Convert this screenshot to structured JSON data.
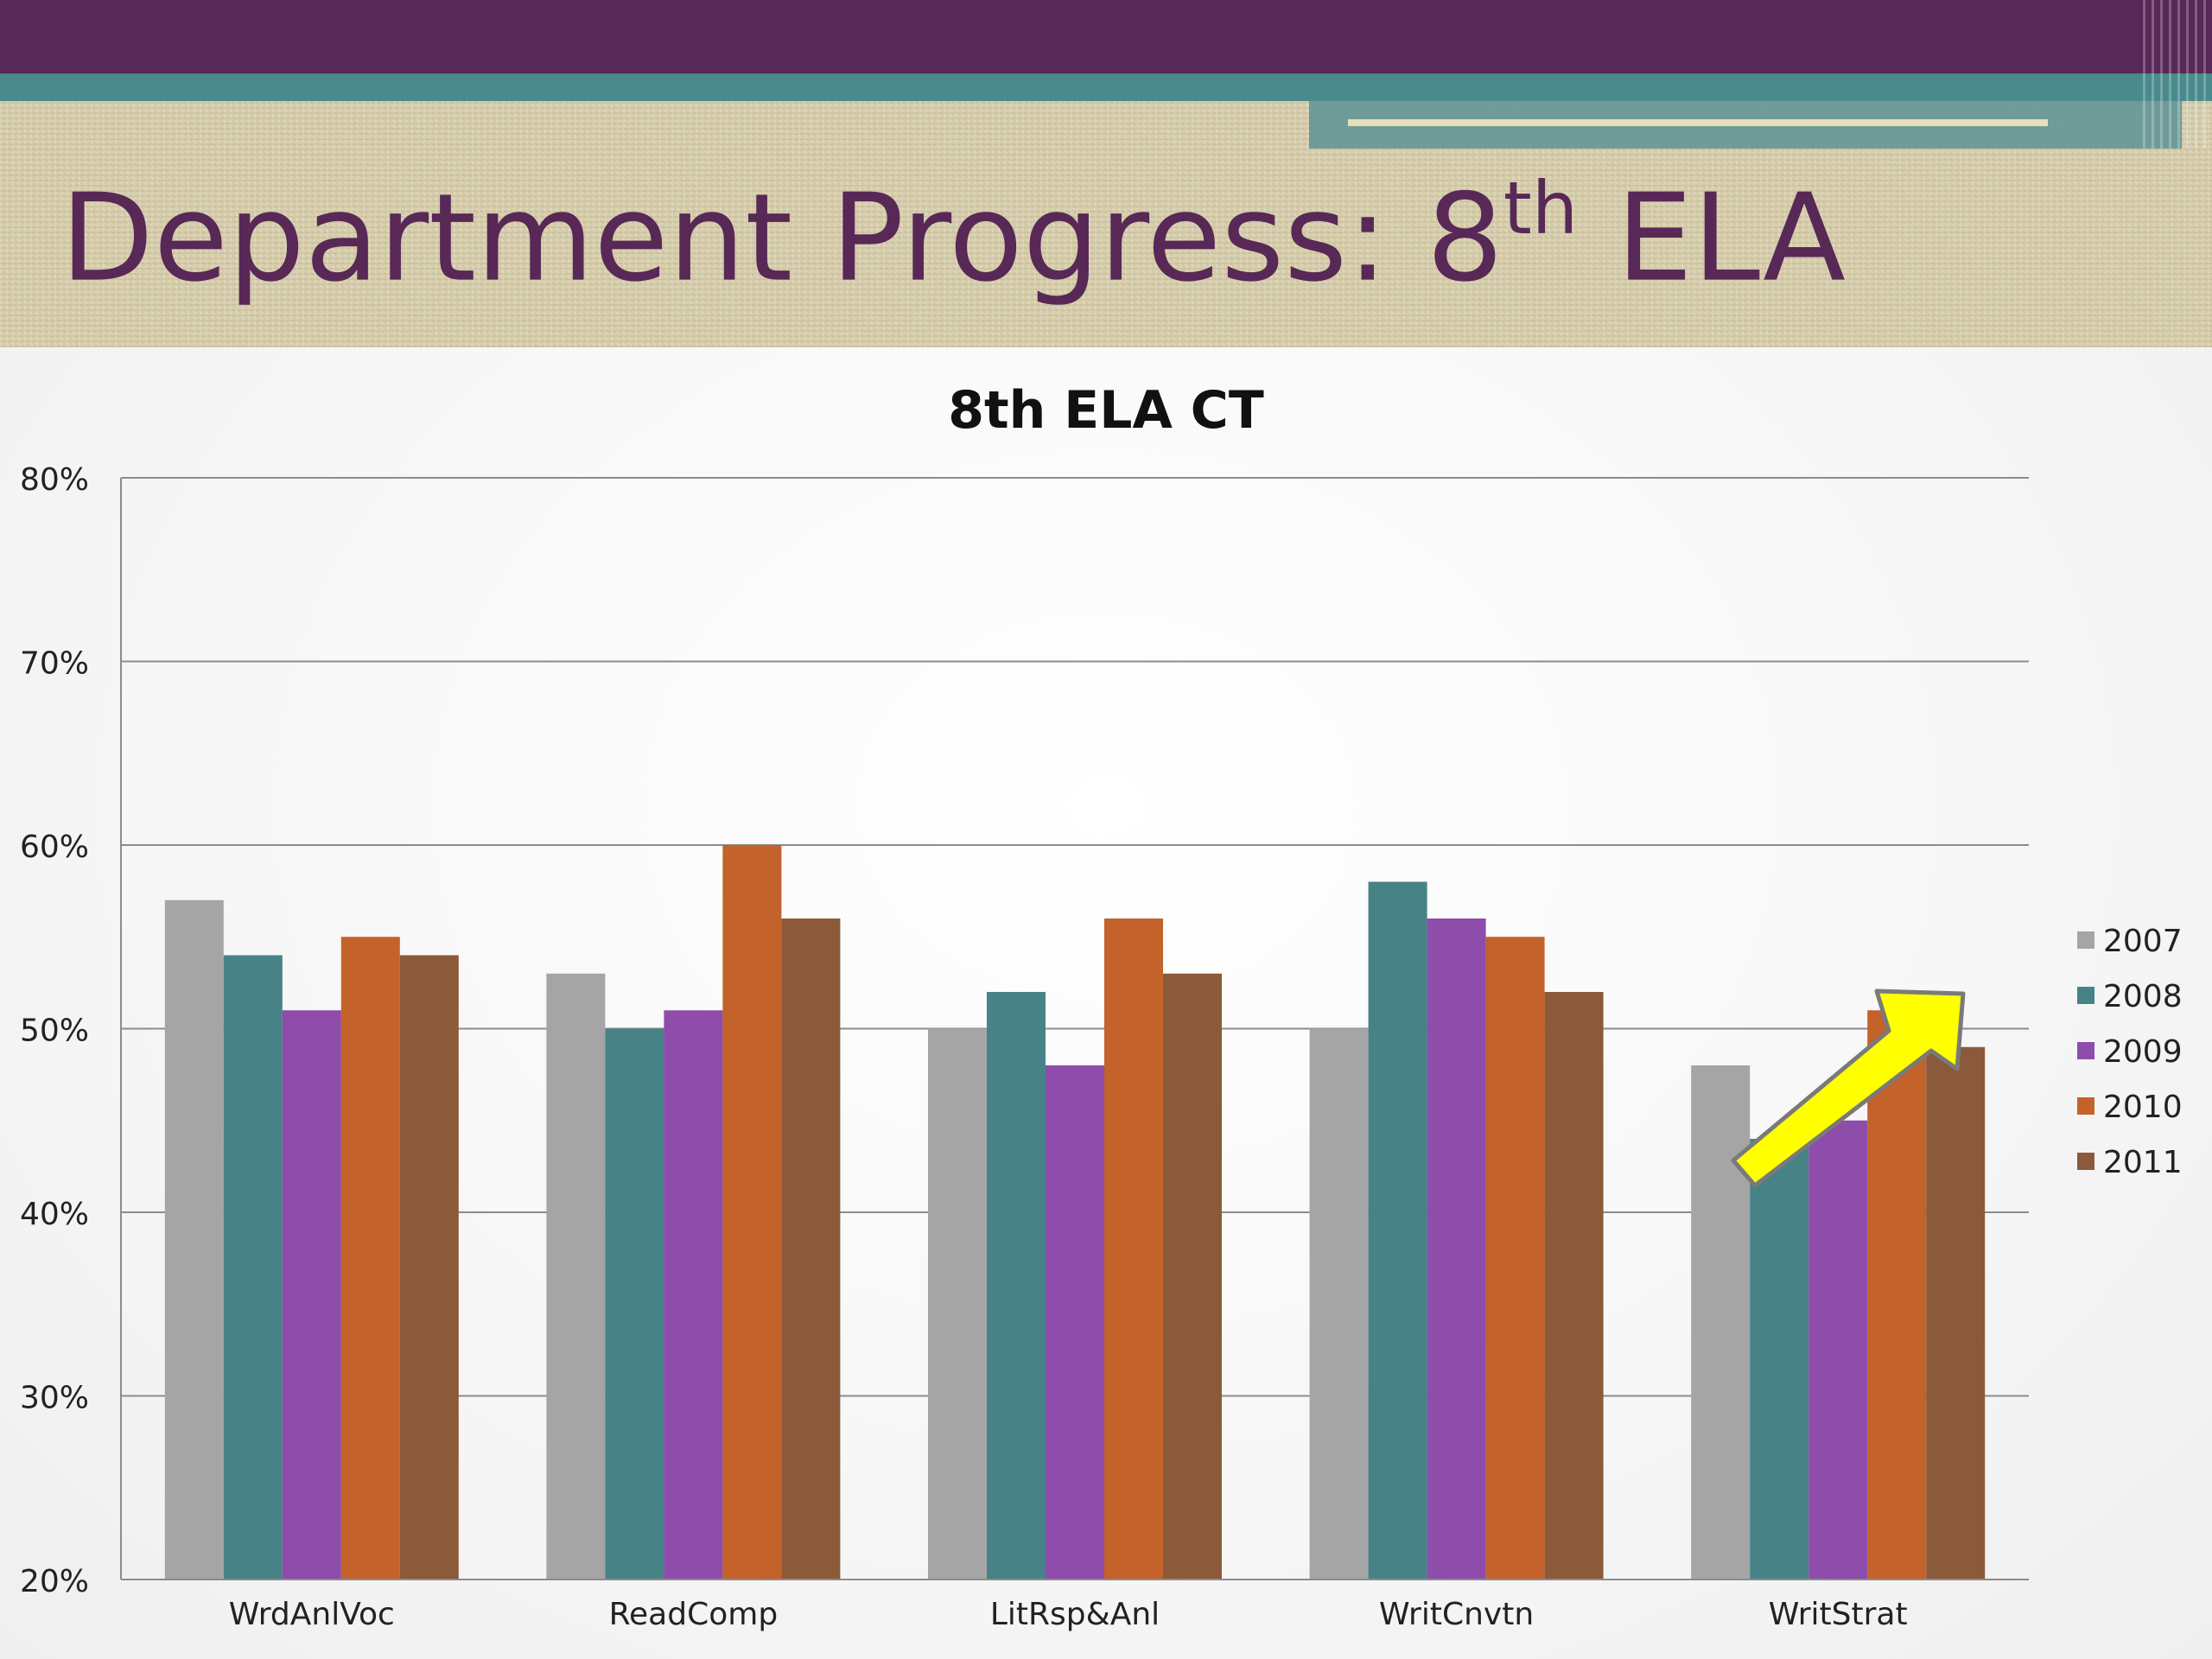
{
  "slide": {
    "title_main": "Department Progress: 8",
    "title_sup": "th",
    "title_end": " ELA"
  },
  "colors": {
    "header_band": "#582857",
    "accent_teal": "#4a8a8c",
    "title_text": "#582857"
  },
  "chart_data": {
    "type": "bar",
    "title": "8th ELA CT",
    "xlabel": "",
    "ylabel": "",
    "categories": [
      "WrdAnlVoc",
      "ReadComp",
      "LitRsp&Anl",
      "WritCnvtn",
      "WritStrat"
    ],
    "series": [
      {
        "name": "2007",
        "color": "#a5a5a5",
        "values": [
          0.57,
          0.53,
          0.5,
          0.5,
          0.48
        ]
      },
      {
        "name": "2008",
        "color": "#468286",
        "values": [
          0.54,
          0.5,
          0.52,
          0.58,
          0.44
        ]
      },
      {
        "name": "2009",
        "color": "#8e4cab",
        "values": [
          0.51,
          0.51,
          0.48,
          0.56,
          0.45
        ]
      },
      {
        "name": "2010",
        "color": "#c3622a",
        "values": [
          0.55,
          0.6,
          0.56,
          0.55,
          0.51
        ]
      },
      {
        "name": "2011",
        "color": "#8b5a3a",
        "values": [
          0.54,
          0.56,
          0.53,
          0.52,
          0.49
        ]
      }
    ],
    "ylim": [
      0.2,
      0.8
    ],
    "yticks": [
      "20%",
      "30%",
      "40%",
      "50%",
      "60%",
      "70%",
      "80%"
    ],
    "grid": true,
    "legend_position": "right",
    "annotation": {
      "type": "arrow",
      "color": "#ffff00",
      "from_category": "WritStrat",
      "direction": "up-right"
    }
  }
}
